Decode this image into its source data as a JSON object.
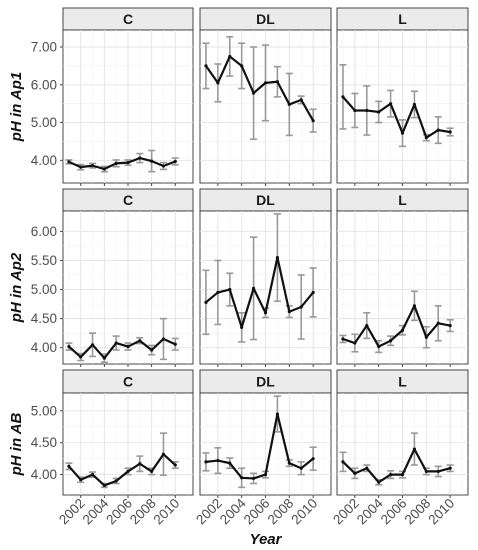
{
  "chart_data": {
    "type": "line",
    "xlabel": "Year",
    "columns": [
      "C",
      "DL",
      "L"
    ],
    "x_ticks": [
      2002,
      2004,
      2006,
      2008,
      2010
    ],
    "x": [
      2001,
      2002,
      2003,
      2004,
      2005,
      2006,
      2007,
      2008,
      2009,
      2010,
      2011
    ],
    "xlim": [
      2000.5,
      2011.5
    ],
    "rows": [
      {
        "ylabel": "pH in Ap1",
        "ylim": [
          3.4,
          7.45
        ],
        "y_ticks": [
          4.0,
          5.0,
          6.0,
          7.0
        ],
        "y_tick_labels": [
          "4.00",
          "5.00",
          "6.00",
          "7.00"
        ],
        "panels": [
          {
            "facet": "C",
            "values": [
              3.96,
              3.82,
              3.86,
              3.77,
              3.92,
              3.94,
              4.06,
              3.98,
              3.85,
              3.97,
              null
            ],
            "error": [
              0.05,
              0.07,
              0.06,
              0.07,
              0.09,
              0.07,
              0.12,
              0.28,
              0.09,
              0.09,
              null
            ]
          },
          {
            "facet": "DL",
            "values": [
              6.5,
              6.05,
              6.75,
              6.5,
              5.78,
              6.05,
              6.08,
              5.48,
              5.6,
              5.05,
              null
            ],
            "error": [
              0.6,
              0.5,
              0.52,
              0.6,
              1.22,
              1.0,
              0.4,
              0.82,
              0.1,
              0.3,
              null
            ]
          },
          {
            "facet": "L",
            "values": [
              5.68,
              5.32,
              5.32,
              5.28,
              5.5,
              4.72,
              5.48,
              4.6,
              4.8,
              4.75,
              null
            ],
            "error": [
              0.85,
              0.45,
              0.65,
              0.28,
              0.35,
              0.35,
              0.35,
              0.08,
              0.35,
              0.1,
              null
            ]
          }
        ]
      },
      {
        "ylabel": "pH in Ap2",
        "ylim": [
          3.72,
          6.35
        ],
        "y_ticks": [
          4.0,
          4.5,
          5.0,
          5.5,
          6.0
        ],
        "y_tick_labels": [
          "4.00",
          "4.50",
          "5.00",
          "5.50",
          "6.00"
        ],
        "panels": [
          {
            "facet": "C",
            "values": [
              4.02,
              3.84,
              4.05,
              3.82,
              4.08,
              4.02,
              4.12,
              3.96,
              4.15,
              4.06,
              null
            ],
            "error": [
              0.06,
              0.06,
              0.2,
              0.07,
              0.12,
              0.06,
              0.05,
              0.08,
              0.35,
              0.1,
              null
            ]
          },
          {
            "facet": "DL",
            "values": [
              4.78,
              4.95,
              5.0,
              4.35,
              5.02,
              4.6,
              5.55,
              4.62,
              4.7,
              4.95,
              null
            ],
            "error": [
              0.55,
              0.55,
              0.28,
              0.25,
              0.88,
              0.08,
              0.75,
              0.1,
              0.55,
              0.42,
              null
            ]
          },
          {
            "facet": "L",
            "values": [
              4.15,
              4.08,
              4.38,
              4.02,
              4.12,
              4.3,
              4.72,
              4.18,
              4.42,
              4.38,
              null
            ],
            "error": [
              0.06,
              0.15,
              0.22,
              0.1,
              0.08,
              0.08,
              0.25,
              0.18,
              0.3,
              0.1,
              null
            ]
          }
        ]
      },
      {
        "ylabel": "pH in AB",
        "ylim": [
          3.68,
          5.28
        ],
        "y_ticks": [
          4.0,
          4.5,
          5.0
        ],
        "y_tick_labels": [
          "4.00",
          "4.50",
          "5.00"
        ],
        "panels": [
          {
            "facet": "C",
            "values": [
              4.13,
              3.92,
              4.0,
              3.83,
              3.9,
              4.05,
              4.17,
              4.05,
              4.32,
              4.15,
              null
            ],
            "error": [
              0.05,
              0.04,
              0.04,
              0.03,
              0.04,
              0.05,
              0.12,
              0.05,
              0.33,
              0.05,
              null
            ]
          },
          {
            "facet": "DL",
            "values": [
              4.2,
              4.22,
              4.18,
              3.95,
              3.94,
              4.0,
              4.95,
              4.18,
              4.1,
              4.25,
              null
            ],
            "error": [
              0.14,
              0.2,
              0.08,
              0.15,
              0.08,
              0.05,
              0.28,
              0.05,
              0.1,
              0.18,
              null
            ]
          },
          {
            "facet": "L",
            "values": [
              4.2,
              4.02,
              4.1,
              3.88,
              4.0,
              4.0,
              4.4,
              4.05,
              4.05,
              4.1,
              null
            ],
            "error": [
              0.15,
              0.08,
              0.05,
              0.04,
              0.06,
              0.05,
              0.25,
              0.05,
              0.08,
              0.05,
              null
            ]
          }
        ]
      }
    ]
  }
}
